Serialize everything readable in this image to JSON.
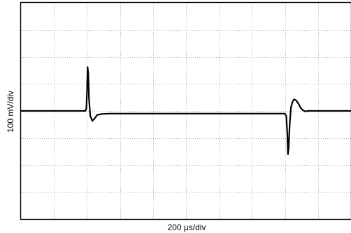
{
  "chart_data": {
    "type": "line",
    "xlabel": "200 µs/div",
    "ylabel": "100 mV/div",
    "x_unit": "µs",
    "y_unit": "mV",
    "xlim": [
      0,
      2000
    ],
    "ylim": [
      -400,
      400
    ],
    "x_major_step": 200,
    "y_major_step": 100,
    "grid": true,
    "grid_style": "dotted",
    "trace_color": "#000000",
    "grid_color": "#b4b4b4",
    "series": [
      {
        "x": [
          0,
          380,
          390,
          396,
          400,
          404,
          408,
          412,
          420,
          432,
          446,
          462,
          490,
          540,
          700,
          1000,
          1300,
          1560,
          1600,
          1608,
          1614,
          1618,
          1622,
          1628,
          1636,
          1646,
          1656,
          1668,
          1682,
          1696,
          1710,
          1724,
          1740,
          1760,
          1800,
          2000
        ],
        "y": [
          0,
          0,
          0,
          8,
          68,
          162,
          137,
          48,
          -18,
          -37,
          -28,
          -15,
          -11,
          -10,
          -10,
          -10,
          -10,
          -10,
          -10,
          -20,
          -85,
          -160,
          -138,
          -55,
          12,
          35,
          43,
          39,
          26,
          10,
          2,
          -2,
          0,
          0,
          0,
          0
        ]
      }
    ]
  }
}
